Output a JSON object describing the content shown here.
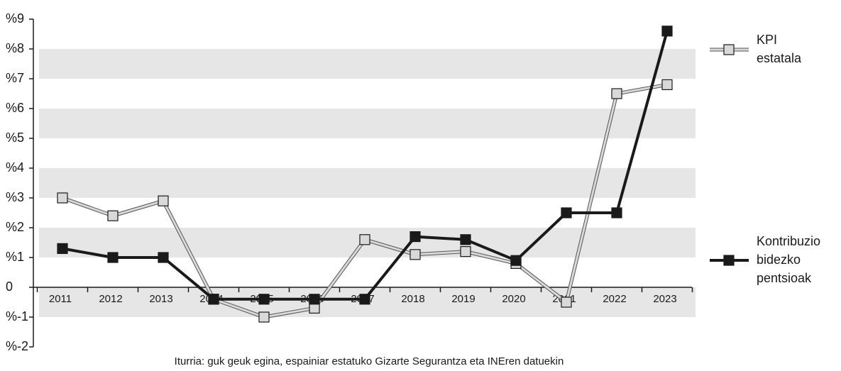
{
  "chart_data": {
    "type": "line",
    "categories": [
      "2011",
      "2012",
      "2013",
      "2014",
      "2015",
      "2016",
      "2017",
      "2018",
      "2019",
      "2020",
      "2021",
      "2022",
      "2023"
    ],
    "series": [
      {
        "name": "KPI estatala",
        "color": "#d9d9d9",
        "values": [
          3.0,
          2.4,
          2.9,
          -0.4,
          -1.0,
          -0.7,
          1.6,
          1.1,
          1.2,
          0.8,
          -0.5,
          6.5,
          6.8
        ]
      },
      {
        "name": "Kontribuzio bidezko pentsioak",
        "color": "#1a1a1a",
        "values": [
          1.3,
          1.0,
          1.0,
          -0.4,
          -0.4,
          -0.4,
          -0.4,
          1.7,
          1.6,
          0.9,
          2.5,
          2.5,
          8.6
        ]
      }
    ],
    "ylim": [
      -2,
      9
    ],
    "yticks": [
      {
        "value": -2,
        "label": "%-2"
      },
      {
        "value": -1,
        "label": "%-1"
      },
      0,
      {
        "value": 1,
        "label": "%1"
      },
      {
        "value": 2,
        "label": "%2"
      },
      {
        "value": 3,
        "label": "%3"
      },
      {
        "value": 4,
        "label": "%4"
      },
      {
        "value": 5,
        "label": "%5"
      },
      {
        "value": 6,
        "label": "%6"
      },
      {
        "value": 7,
        "label": "%7"
      },
      {
        "value": 8,
        "label": "%8"
      },
      {
        "value": 9,
        "label": "%9"
      }
    ],
    "source": "Iturria: guk geuk egina, espainiar estatuko Gizarte Segurantza eta INEren datuekin"
  }
}
